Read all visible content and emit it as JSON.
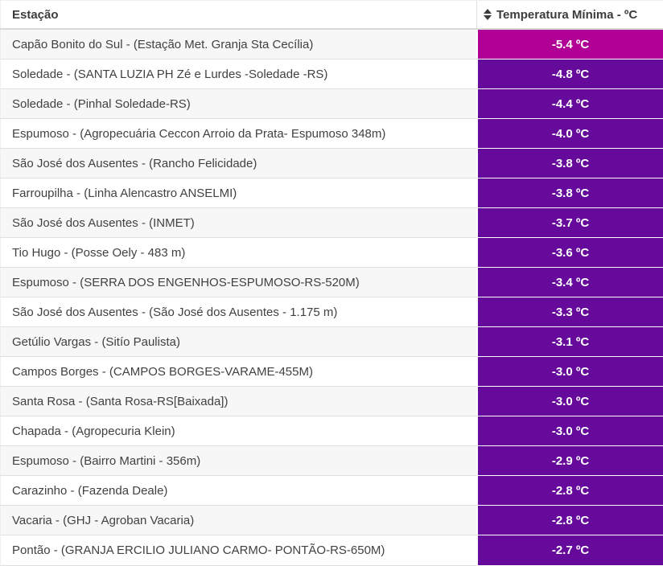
{
  "table": {
    "columns": [
      {
        "label": "Estação"
      },
      {
        "label": "Temperatura Mínima - ºC",
        "sortable": true
      }
    ],
    "colors": {
      "top_value_bg": "#b10095",
      "value_bg": "#650a9a",
      "value_text": "#ffffff",
      "row_alt_bg": "#f7f7f7",
      "row_bg": "#ffffff",
      "border": "#e0e0e0",
      "header_text": "#3c3c3c",
      "cell_text": "#414141"
    },
    "rows": [
      {
        "station": "Capão Bonito do Sul - (Estação Met. Granja Sta Cecília)",
        "temp": "-5.4 ºC",
        "top": true
      },
      {
        "station": "Soledade - (SANTA LUZIA PH Zé e Lurdes -Soledade -RS)",
        "temp": "-4.8 ºC",
        "top": false
      },
      {
        "station": "Soledade - (Pinhal Soledade-RS)",
        "temp": "-4.4 ºC",
        "top": false
      },
      {
        "station": "Espumoso - (Agropecuária Ceccon Arroio da Prata- Espumoso 348m)",
        "temp": "-4.0 ºC",
        "top": false
      },
      {
        "station": "São José dos Ausentes - (Rancho Felicidade)",
        "temp": "-3.8 ºC",
        "top": false
      },
      {
        "station": "Farroupilha - (Linha Alencastro ANSELMI)",
        "temp": "-3.8 ºC",
        "top": false
      },
      {
        "station": "São José dos Ausentes - (INMET)",
        "temp": "-3.7 ºC",
        "top": false
      },
      {
        "station": "Tio Hugo - (Posse Oely - 483 m)",
        "temp": "-3.6 ºC",
        "top": false
      },
      {
        "station": "Espumoso - (SERRA DOS ENGENHOS-ESPUMOSO-RS-520M)",
        "temp": "-3.4 ºC",
        "top": false
      },
      {
        "station": "São José dos Ausentes - (São José dos Ausentes - 1.175 m)",
        "temp": "-3.3 ºC",
        "top": false
      },
      {
        "station": "Getúlio Vargas - (Sitío Paulista)",
        "temp": "-3.1 ºC",
        "top": false
      },
      {
        "station": "Campos Borges - (CAMPOS BORGES-VARAME-455M)",
        "temp": "-3.0 ºC",
        "top": false
      },
      {
        "station": "Santa Rosa - (Santa Rosa-RS[Baixada])",
        "temp": "-3.0 ºC",
        "top": false
      },
      {
        "station": "Chapada - (Agropecuria Klein)",
        "temp": "-3.0 ºC",
        "top": false
      },
      {
        "station": "Espumoso - (Bairro Martini - 356m)",
        "temp": "-2.9 ºC",
        "top": false
      },
      {
        "station": "Carazinho - (Fazenda Deale)",
        "temp": "-2.8 ºC",
        "top": false
      },
      {
        "station": "Vacaria - (GHJ - Agroban Vacaria)",
        "temp": "-2.8 ºC",
        "top": false
      },
      {
        "station": "Pontão - (GRANJA ERCILIO JULIANO CARMO- PONTÃO-RS-650M)",
        "temp": "-2.7 ºC",
        "top": false
      }
    ]
  }
}
